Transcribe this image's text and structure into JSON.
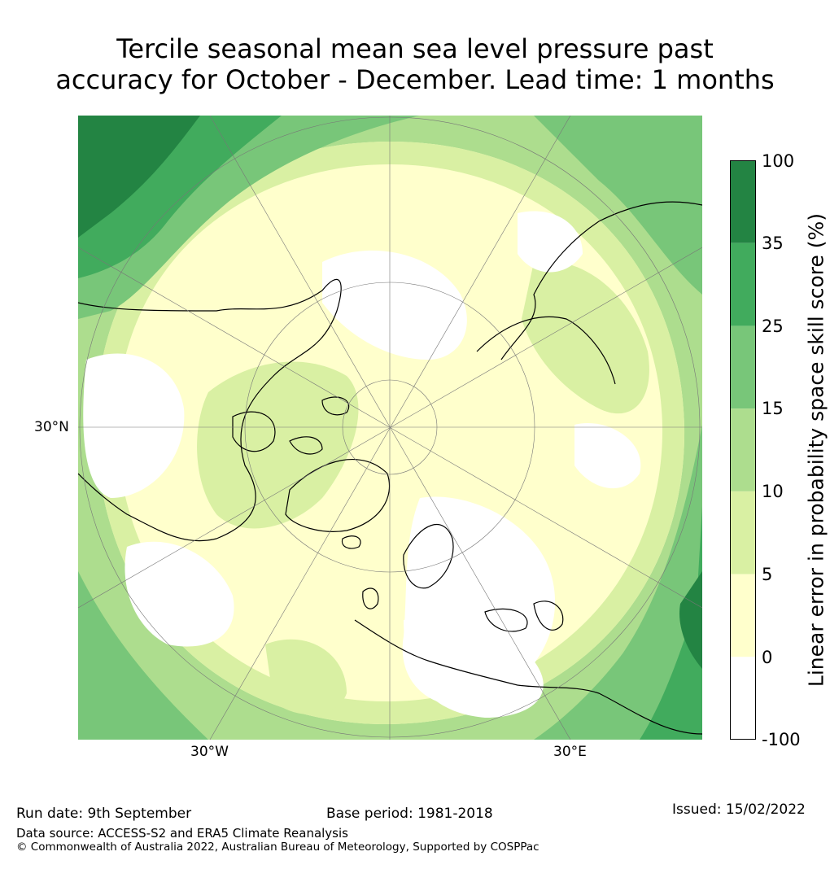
{
  "title": {
    "line1": "Tercile seasonal mean sea level pressure past",
    "line2": "accuracy for October - December. Lead time: 1 months"
  },
  "map": {
    "projection": "north polar stereographic",
    "lat_labels": [
      "30°N"
    ],
    "lon_labels": [
      "30°W",
      "30°E"
    ]
  },
  "colorbar": {
    "label": "Linear error in probability space skill score (%)",
    "ticks": [
      "100",
      "35",
      "25",
      "15",
      "10",
      "5",
      "0",
      "-100"
    ],
    "bins": [
      {
        "range": "35 to 100",
        "color": "#238443"
      },
      {
        "range": "25 to 35",
        "color": "#41ab5d"
      },
      {
        "range": "15 to 25",
        "color": "#78c679"
      },
      {
        "range": "10 to 15",
        "color": "#addd8e"
      },
      {
        "range": "5 to 10",
        "color": "#d9f0a3"
      },
      {
        "range": "0 to 5",
        "color": "#ffffcc"
      },
      {
        "range": "-100 to 0",
        "color": "#ffffff"
      }
    ]
  },
  "footer": {
    "run_date": "Run date: 9th September",
    "base_period": "Base period: 1981-2018",
    "issued": "Issued: 15/02/2022",
    "data_source": "Data source: ACCESS-S2 and ERA5 Climate Reanalysis",
    "copyright": "© Commonwealth of Australia 2022, Australian Bureau of Meteorology, Supported by COSPPac"
  }
}
